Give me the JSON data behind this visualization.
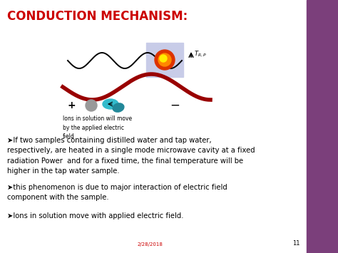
{
  "title": "CONDUCTION MECHANISM:",
  "title_color": "#cc0000",
  "title_fontsize": 12,
  "bg_color": "#ffffff",
  "right_bar_color": "#7b3f7b",
  "bullet1": "➤If two samples containing distilled water and tap water,\nrespectively, are heated in a single mode microwave cavity at a fixed\nradiation Power  and for a fixed time, the final temperature will be\nhigher in the tap water sample.",
  "bullet2": "➤this phenomenon is due to major interaction of electric field\ncomponent with the sample.",
  "bullet3": "➤Ions in solution move with applied electric field.",
  "date_text": "2/28/2018",
  "page_num": "11",
  "date_color": "#cc0000",
  "text_fontsize": 7.2,
  "caption_text": "Ions in solution will move\nby the applied electric\nfield",
  "caption_fontsize": 5.5
}
